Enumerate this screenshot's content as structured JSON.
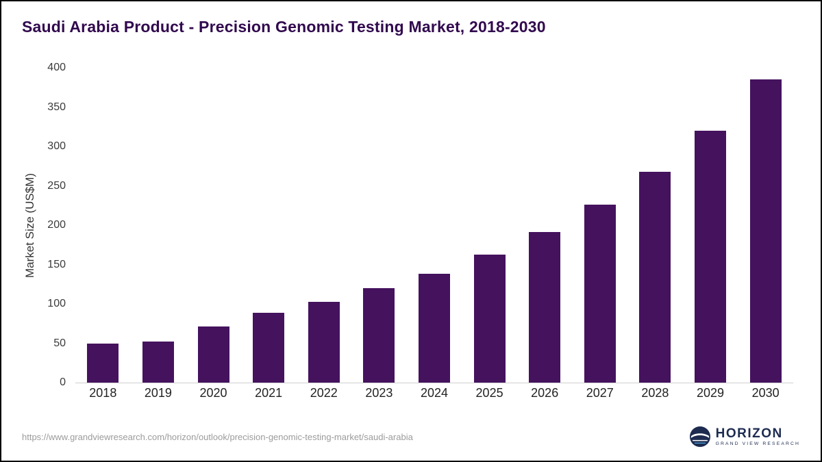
{
  "header": {
    "title": "Saudi Arabia Product - Precision Genomic Testing Market, 2018-2030"
  },
  "chart_data": {
    "type": "bar",
    "title": "Saudi Arabia Product - Precision Genomic Testing Market, 2018-2030",
    "categories": [
      "2018",
      "2019",
      "2020",
      "2021",
      "2022",
      "2023",
      "2024",
      "2025",
      "2026",
      "2027",
      "2028",
      "2029",
      "2030"
    ],
    "values": [
      50,
      52,
      71,
      89,
      103,
      120,
      138,
      163,
      191,
      226,
      268,
      320,
      385
    ],
    "xlabel": "",
    "ylabel": "Market Size (US$M)",
    "ylim": [
      0,
      400
    ],
    "yticks": [
      0,
      50,
      100,
      150,
      200,
      250,
      300,
      350,
      400
    ],
    "grid": false,
    "legend": "none",
    "bar_color": "#45125e"
  },
  "colors": {
    "title": "#31094e",
    "bar": "#45125e",
    "axis_text": "#3a3a3a",
    "baseline": "#cfcfcf",
    "url_text": "#9b9b9b",
    "logo_navy": "#1d2b50"
  },
  "footer": {
    "source_url": "https://www.grandviewresearch.com/horizon/outlook/precision-genomic-testing-market/saudi-arabia",
    "logo_name": "HORIZON",
    "logo_subtext": "GRAND VIEW RESEARCH"
  }
}
